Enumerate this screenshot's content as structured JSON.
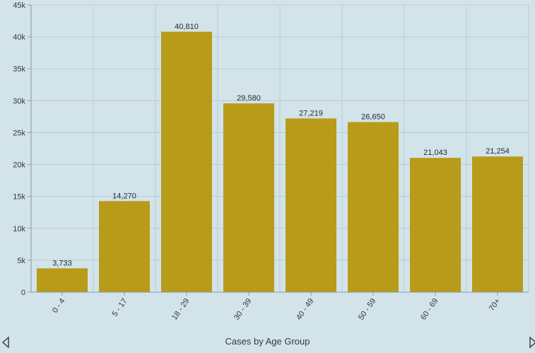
{
  "chart_data": {
    "type": "bar",
    "categories": [
      "0 - 4",
      "5 - 17",
      "18 - 29",
      "30 - 39",
      "40 - 49",
      "50 - 59",
      "60 - 69",
      "70+"
    ],
    "values": [
      3733,
      14270,
      40810,
      29580,
      27219,
      26650,
      21043,
      21254
    ],
    "value_labels": [
      "3,733",
      "14,270",
      "40,810",
      "29,580",
      "27,219",
      "26,650",
      "21,043",
      "21,254"
    ],
    "ytick_labels": [
      "0",
      "5k",
      "10k",
      "15k",
      "20k",
      "25k",
      "30k",
      "35k",
      "40k",
      "45k"
    ],
    "ylim": [
      0,
      45000
    ],
    "xlabel": "Cases by Age Group",
    "bar_color": "#b89b19",
    "grid": true
  },
  "nav": {
    "prev_icon": "triangle-left-icon",
    "next_icon": "triangle-right-icon"
  }
}
